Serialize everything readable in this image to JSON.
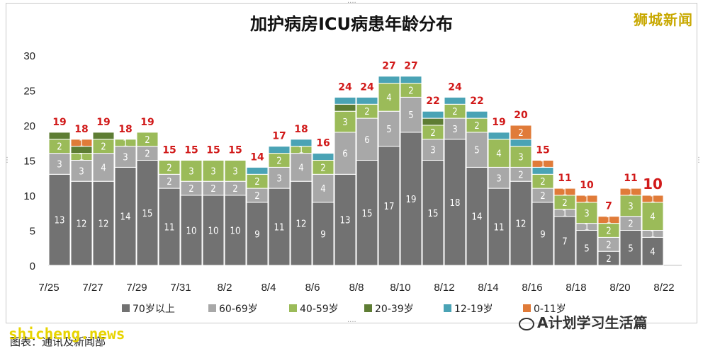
{
  "title": "加护病房ICU病患年龄分布",
  "brand": "狮城新闻",
  "watermark_left": "shicheng.news",
  "caption": "图表：通讯及新闻部",
  "watermark_right": "A计划学习生活篇",
  "colors": {
    "70": "#727272",
    "60": "#a8a8a8",
    "40": "#9bbb59",
    "20": "#5e7d34",
    "12": "#4aa3b5",
    "0": "#e07b39",
    "total_label": "#d11a1a"
  },
  "chart_data": {
    "type": "bar",
    "stacked": true,
    "categories": [
      "7/25",
      "7/26",
      "7/27",
      "7/28",
      "7/29",
      "7/30",
      "7/31",
      "8/1",
      "8/2",
      "8/3",
      "8/4",
      "8/5",
      "8/6",
      "8/7",
      "8/8",
      "8/9",
      "8/10",
      "8/11",
      "8/12",
      "8/13",
      "8/14",
      "8/15",
      "8/16",
      "8/17",
      "8/18",
      "8/19",
      "8/20",
      "8/21"
    ],
    "x_tick_labels": [
      "7/25",
      "7/27",
      "7/29",
      "7/31",
      "8/2",
      "8/4",
      "8/6",
      "8/8",
      "8/10",
      "8/12",
      "8/14",
      "8/16",
      "8/18",
      "8/20",
      "8/22"
    ],
    "ylim": [
      0,
      30
    ],
    "yticks": [
      0,
      5,
      10,
      15,
      20,
      25,
      30
    ],
    "legend_position": "bottom",
    "series": [
      {
        "name": "70岁以上",
        "key": "70",
        "values": [
          13,
          12,
          12,
          14,
          15,
          11,
          10,
          10,
          10,
          9,
          11,
          12,
          9,
          13,
          15,
          17,
          19,
          15,
          18,
          14,
          11,
          12,
          9,
          7,
          5,
          2,
          5,
          4
        ]
      },
      {
        "name": "60-69岁",
        "key": "60",
        "values": [
          3,
          3,
          4,
          3,
          2,
          2,
          2,
          2,
          2,
          2,
          3,
          4,
          4,
          6,
          6,
          5,
          5,
          3,
          3,
          5,
          3,
          2,
          2,
          1,
          1,
          2,
          2,
          1
        ]
      },
      {
        "name": "40-59岁",
        "key": "40",
        "values": [
          2,
          1,
          2,
          1,
          2,
          2,
          3,
          3,
          3,
          2,
          2,
          1,
          2,
          3,
          2,
          4,
          2,
          2,
          2,
          2,
          4,
          3,
          2,
          2,
          3,
          2,
          3,
          4
        ]
      },
      {
        "name": "20-39岁",
        "key": "20",
        "values": [
          1,
          1,
          1,
          0,
          0,
          0,
          0,
          0,
          0,
          0,
          0,
          0,
          0,
          1,
          0,
          0,
          0,
          1,
          0,
          0,
          0,
          0,
          0,
          0,
          0,
          0,
          0,
          0
        ]
      },
      {
        "name": "12-19岁",
        "key": "12",
        "values": [
          0,
          0,
          0,
          0,
          0,
          0,
          0,
          0,
          0,
          1,
          1,
          1,
          1,
          1,
          1,
          1,
          1,
          1,
          1,
          1,
          1,
          1,
          1,
          0,
          0,
          0,
          0,
          0
        ]
      },
      {
        "name": "0-11岁",
        "key": "0",
        "values": [
          0,
          1,
          0,
          0,
          0,
          0,
          0,
          0,
          0,
          0,
          0,
          0,
          0,
          0,
          0,
          0,
          0,
          0,
          0,
          0,
          0,
          2,
          1,
          1,
          1,
          1,
          1,
          1
        ]
      }
    ],
    "totals": [
      19,
      18,
      19,
      18,
      19,
      15,
      15,
      15,
      15,
      14,
      17,
      18,
      16,
      24,
      24,
      27,
      27,
      22,
      24,
      22,
      19,
      20,
      15,
      11,
      10,
      7,
      11,
      10
    ]
  }
}
